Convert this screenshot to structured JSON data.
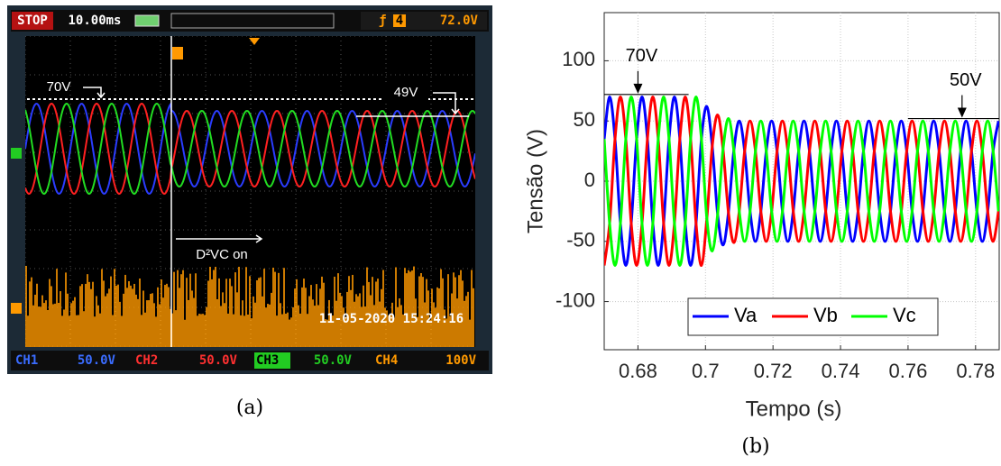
{
  "panel_a": {
    "status": "STOP",
    "timebase": "10.00ms",
    "trigger_channel": "4",
    "trigger_level": "72.0V",
    "annotations": [
      "70V",
      "49V",
      "D²VC on"
    ],
    "timestamp": "11-05-2020 15:24:16",
    "channels": [
      {
        "name": "CH1",
        "scale": "50.0V"
      },
      {
        "name": "CH2",
        "scale": "50.0V"
      },
      {
        "name": "CH3",
        "scale": "50.0V"
      },
      {
        "name": "CH4",
        "scale": "100V"
      }
    ],
    "caption": "(a)"
  },
  "chart_data": {
    "type": "line",
    "xlabel": "Tempo (s)",
    "ylabel": "Tensão (V)",
    "caption": "(b)",
    "x": [
      0.67,
      0.6716,
      0.6732,
      0.6748,
      0.6764,
      0.678,
      0.6796,
      0.6812,
      0.6828,
      0.6844,
      0.686,
      0.6876,
      0.6892,
      0.6908,
      0.6924,
      0.694,
      0.6956,
      0.6972,
      0.6988,
      0.7004,
      0.702,
      0.7036,
      0.7052,
      0.7068,
      0.7084,
      0.71,
      0.7116,
      0.7132,
      0.7148,
      0.7164,
      0.718,
      0.7196,
      0.7212,
      0.7228,
      0.7244,
      0.726,
      0.7276,
      0.7292,
      0.7308,
      0.7324,
      0.734,
      0.7356,
      0.7372,
      0.7388,
      0.7404,
      0.742,
      0.7436,
      0.7452,
      0.7468,
      0.7484,
      0.75,
      0.7516,
      0.7532,
      0.7548,
      0.7564,
      0.758,
      0.7596,
      0.7612,
      0.7628,
      0.7644,
      0.766,
      0.7676,
      0.7692,
      0.7708,
      0.7724,
      0.774,
      0.7756,
      0.7772,
      0.7788,
      0.7804,
      0.782,
      0.7836,
      0.7852,
      0.7868
    ],
    "series": [
      {
        "name": "Va",
        "color": "#0000ff",
        "values": [
          35,
          70,
          35,
          -35,
          -70,
          -35,
          35,
          70,
          35,
          -35,
          -70,
          -35,
          35,
          70,
          35,
          -35,
          -70,
          -35,
          35,
          62,
          29,
          -27.5,
          -53,
          -26,
          25.5,
          50,
          25,
          -25,
          -50,
          -25,
          25,
          50,
          25,
          -25,
          -50,
          -25,
          25,
          50,
          25,
          -25,
          -50,
          -25,
          25,
          50,
          25,
          -25,
          -50,
          -25,
          25,
          50,
          25,
          -25,
          -50,
          -25,
          25,
          50,
          25,
          -25,
          -50,
          -25,
          25,
          50,
          25,
          -25,
          -50,
          -25,
          25,
          50,
          25,
          -25,
          -50,
          -25,
          25,
          50
        ]
      },
      {
        "name": "Vb",
        "color": "#ff0000",
        "values": [
          -70,
          -35,
          35,
          70,
          35,
          -35,
          -70,
          -35,
          35,
          70,
          35,
          -35,
          -70,
          -35,
          35,
          70,
          35,
          -35,
          -70,
          -31,
          29,
          55,
          26.5,
          -26,
          -51,
          -25,
          25,
          50,
          25,
          -25,
          -50,
          -25,
          25,
          50,
          25,
          -25,
          -50,
          -25,
          25,
          50,
          25,
          -25,
          -50,
          -25,
          25,
          50,
          25,
          -25,
          -50,
          -25,
          25,
          50,
          25,
          -25,
          -50,
          -25,
          25,
          50,
          25,
          -25,
          -50,
          -25,
          25,
          50,
          25,
          -25,
          -50,
          -25,
          25,
          50,
          25,
          -25,
          -50,
          -25
        ]
      },
      {
        "name": "Vc",
        "color": "#00ff00",
        "values": [
          35,
          -35,
          -70,
          -35,
          35,
          70,
          35,
          -35,
          -70,
          -35,
          35,
          70,
          35,
          -35,
          -70,
          -35,
          35,
          70,
          35,
          -31,
          -58,
          -27.5,
          26.5,
          52,
          25.5,
          -25,
          -50,
          -25,
          25,
          50,
          25,
          -25,
          -50,
          -25,
          25,
          50,
          25,
          -25,
          -50,
          -25,
          25,
          50,
          25,
          -25,
          -50,
          -25,
          25,
          50,
          25,
          -25,
          -50,
          -25,
          25,
          50,
          25,
          -25,
          -50,
          -25,
          25,
          50,
          25,
          -25,
          -50,
          -25,
          25,
          50,
          25,
          -25,
          -50,
          -25,
          25,
          50,
          25,
          -25
        ]
      }
    ],
    "xlim": [
      0.67,
      0.787
    ],
    "ylim": [
      -140,
      140
    ],
    "xticks": [
      0.68,
      0.7,
      0.72,
      0.74,
      0.76,
      0.78
    ],
    "yticks": [
      -100,
      -50,
      0,
      50,
      100
    ],
    "grid": true,
    "legend": "bottom",
    "annotations": [
      {
        "text": "70V",
        "x": 0.68,
        "y": 72,
        "line": [
          0.67,
          0.695
        ]
      },
      {
        "text": "50V",
        "x": 0.776,
        "y": 52,
        "line": [
          0.76,
          0.787
        ]
      }
    ]
  }
}
